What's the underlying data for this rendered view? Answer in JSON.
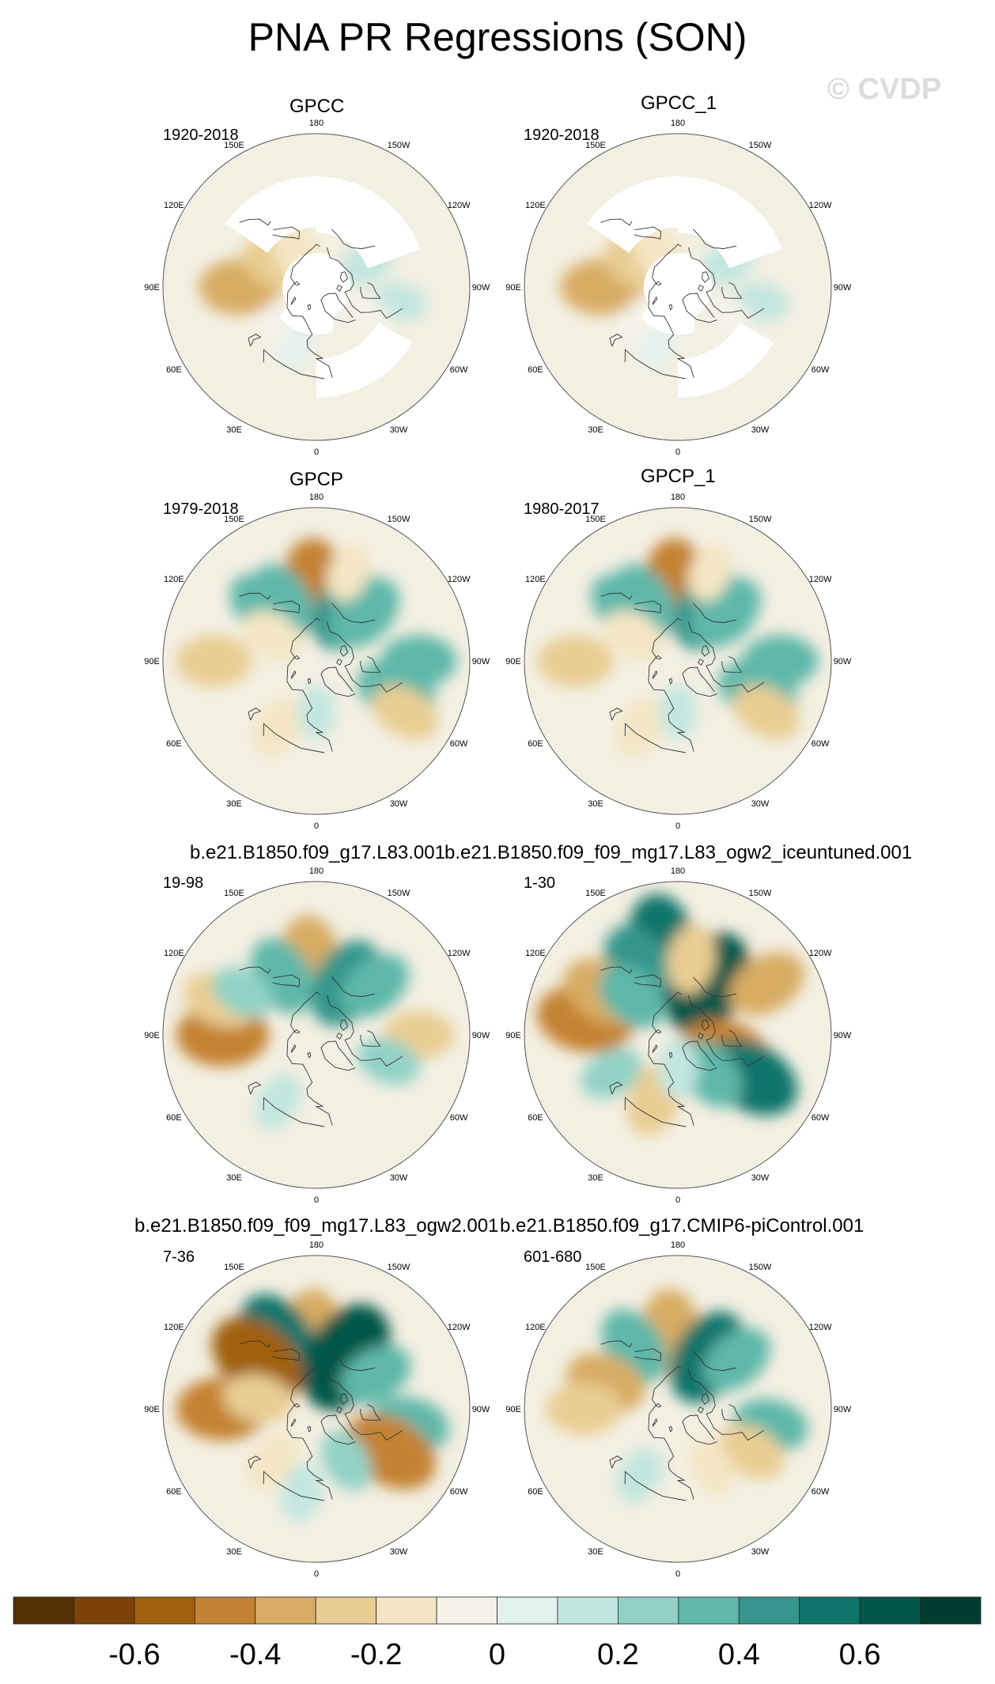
{
  "title": "PNA PR Regressions (SON)",
  "watermark": "© CVDP",
  "panels": [
    {
      "name": "GPCC",
      "period": "1920-2018",
      "pattern": "gpcc"
    },
    {
      "name": "GPCC_1",
      "period": "1920-2018",
      "pattern": "gpcc"
    },
    {
      "name": "GPCP",
      "period": "1979-2018",
      "pattern": "gpcp"
    },
    {
      "name": "GPCP_1",
      "period": "1980-2017",
      "pattern": "gpcp"
    },
    {
      "name": "b.e21.B1850.f09_g17.L83.001",
      "period": "19-98",
      "pattern": "model_a"
    },
    {
      "name": "b.e21.B1850.f09_f09_mg17.L83_ogw2_iceuntuned.001",
      "period": "1-30",
      "pattern": "model_b"
    },
    {
      "name": "b.e21.B1850.f09_f09_mg17.L83_ogw2.001",
      "period": "7-36",
      "pattern": "model_c"
    },
    {
      "name": "b.e21.B1850.f09_g17.CMIP6-piControl.001",
      "period": "601-680",
      "pattern": "model_d"
    }
  ],
  "longitude_labels": [
    "180",
    "150E",
    "120E",
    "90E",
    "60E",
    "30E",
    "0",
    "30W",
    "60W",
    "90W",
    "120W",
    "150W"
  ],
  "chart_data": {
    "type": "heatmap",
    "projection": "north-polar-stereographic",
    "variable": "PR regression onto PNA index",
    "colorbar": {
      "levels": [
        -0.7,
        -0.6,
        -0.5,
        -0.4,
        -0.3,
        -0.2,
        -0.1,
        0,
        0.1,
        0.2,
        0.3,
        0.4,
        0.5,
        0.6,
        0.7
      ],
      "tick_labels": [
        "-0.6",
        "-0.4",
        "-0.2",
        "0",
        "0.2",
        "0.4",
        "0.6"
      ],
      "tick_values": [
        -0.6,
        -0.4,
        -0.2,
        0,
        0.2,
        0.4,
        0.6
      ],
      "colors": [
        "#543005",
        "#7c4309",
        "#a0600e",
        "#c48232",
        "#d8ac64",
        "#e9cd93",
        "#f4e6c4",
        "#f5f2e8",
        "#e3f1ef",
        "#c2e6e0",
        "#92d2c6",
        "#5fb8aa",
        "#34968c",
        "#0e756a",
        "#01574a",
        "#003c30"
      ]
    },
    "patterns": {
      "gpcc": [
        {
          "lon": 90,
          "lat": 45,
          "value": -0.35
        },
        {
          "lon": 120,
          "lat": 62,
          "value": -0.25
        },
        {
          "lon": 150,
          "lat": 68,
          "value": -0.2
        },
        {
          "lon": -115,
          "lat": 58,
          "value": 0.12
        },
        {
          "lon": -80,
          "lat": 40,
          "value": 0.1
        },
        {
          "lon": 20,
          "lat": 55,
          "value": 0.08
        },
        {
          "lon": 50,
          "lat": 60,
          "value": -0.08
        },
        {
          "lon": -60,
          "lat": 55,
          "value": -0.06
        }
      ],
      "gpcp": [
        {
          "lon": 178,
          "lat": 45,
          "value": -0.45
        },
        {
          "lon": 150,
          "lat": 50,
          "value": 0.35
        },
        {
          "lon": 135,
          "lat": 45,
          "value": 0.3
        },
        {
          "lon": -150,
          "lat": 55,
          "value": 0.4
        },
        {
          "lon": -135,
          "lat": 50,
          "value": 0.35
        },
        {
          "lon": -90,
          "lat": 30,
          "value": 0.3
        },
        {
          "lon": -70,
          "lat": 40,
          "value": 0.35
        },
        {
          "lon": -60,
          "lat": 30,
          "value": -0.25
        },
        {
          "lon": 90,
          "lat": 30,
          "value": -0.3
        },
        {
          "lon": 30,
          "lat": 45,
          "value": -0.2
        },
        {
          "lon": 120,
          "lat": 60,
          "value": -0.2
        },
        {
          "lon": -160,
          "lat": 35,
          "value": -0.15
        },
        {
          "lon": 0,
          "lat": 60,
          "value": 0.1
        }
      ],
      "model_a": [
        {
          "lon": 175,
          "lat": 45,
          "value": -0.4
        },
        {
          "lon": 150,
          "lat": 50,
          "value": 0.35
        },
        {
          "lon": -150,
          "lat": 55,
          "value": 0.45
        },
        {
          "lon": -130,
          "lat": 45,
          "value": 0.3
        },
        {
          "lon": 90,
          "lat": 35,
          "value": -0.45
        },
        {
          "lon": 110,
          "lat": 30,
          "value": -0.3
        },
        {
          "lon": -90,
          "lat": 30,
          "value": -0.25
        },
        {
          "lon": -70,
          "lat": 45,
          "value": 0.2
        },
        {
          "lon": 30,
          "lat": 45,
          "value": 0.15
        },
        {
          "lon": 120,
          "lat": 40,
          "value": 0.2
        }
      ],
      "model_b": [
        {
          "lon": 170,
          "lat": 35,
          "value": 0.5
        },
        {
          "lon": 150,
          "lat": 45,
          "value": 0.45
        },
        {
          "lon": -150,
          "lat": 55,
          "value": 0.6
        },
        {
          "lon": -120,
          "lat": 30,
          "value": -0.35
        },
        {
          "lon": -70,
          "lat": 60,
          "value": -0.45
        },
        {
          "lon": -60,
          "lat": 40,
          "value": 0.5
        },
        {
          "lon": -40,
          "lat": 60,
          "value": 0.3
        },
        {
          "lon": 100,
          "lat": 35,
          "value": -0.5
        },
        {
          "lon": 120,
          "lat": 40,
          "value": -0.4
        },
        {
          "lon": 130,
          "lat": 55,
          "value": 0.3
        },
        {
          "lon": 20,
          "lat": 50,
          "value": -0.3
        },
        {
          "lon": 60,
          "lat": 45,
          "value": 0.2
        },
        {
          "lon": -170,
          "lat": 45,
          "value": -0.25
        },
        {
          "lon": 0,
          "lat": 70,
          "value": 0.15
        }
      ],
      "model_c": [
        {
          "lon": 178,
          "lat": 45,
          "value": -0.4
        },
        {
          "lon": 150,
          "lat": 45,
          "value": 0.55
        },
        {
          "lon": 130,
          "lat": 45,
          "value": -0.55
        },
        {
          "lon": -150,
          "lat": 55,
          "value": 0.65
        },
        {
          "lon": -120,
          "lat": 50,
          "value": 0.3
        },
        {
          "lon": -80,
          "lat": 35,
          "value": 0.35
        },
        {
          "lon": -60,
          "lat": 40,
          "value": -0.5
        },
        {
          "lon": 90,
          "lat": 35,
          "value": -0.45
        },
        {
          "lon": 100,
          "lat": 55,
          "value": -0.25
        },
        {
          "lon": 40,
          "lat": 50,
          "value": -0.2
        },
        {
          "lon": -30,
          "lat": 55,
          "value": 0.2
        },
        {
          "lon": 10,
          "lat": 40,
          "value": 0.15
        }
      ],
      "model_d": [
        {
          "lon": 175,
          "lat": 45,
          "value": -0.4
        },
        {
          "lon": 145,
          "lat": 45,
          "value": 0.35
        },
        {
          "lon": -150,
          "lat": 55,
          "value": 0.5
        },
        {
          "lon": -130,
          "lat": 45,
          "value": 0.3
        },
        {
          "lon": 110,
          "lat": 45,
          "value": -0.35
        },
        {
          "lon": 90,
          "lat": 35,
          "value": -0.3
        },
        {
          "lon": -80,
          "lat": 35,
          "value": 0.3
        },
        {
          "lon": -60,
          "lat": 40,
          "value": -0.25
        },
        {
          "lon": 30,
          "lat": 45,
          "value": 0.15
        },
        {
          "lon": -30,
          "lat": 50,
          "value": -0.15
        }
      ]
    },
    "pole_mask": {
      "gpcc": true,
      "gpcp": false,
      "model_a": false,
      "model_b": false,
      "model_c": false,
      "model_d": false
    }
  }
}
